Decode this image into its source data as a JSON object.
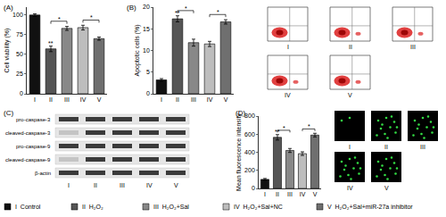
{
  "chart_data": [
    {
      "type": "bar",
      "title": "(A)",
      "y_label": "Cell viability (%)",
      "categories": [
        "I",
        "II",
        "III",
        "IV",
        "V"
      ],
      "values": [
        100,
        57,
        83,
        84,
        70
      ],
      "errors": [
        1.5,
        3.5,
        2.5,
        3,
        2
      ],
      "colors": [
        "#111111",
        "#555555",
        "#888888",
        "#bdbdbd",
        "#6f6f6f"
      ],
      "ylim": [
        0,
        110
      ],
      "yticks": [
        0,
        25,
        50,
        75,
        100
      ],
      "grid": false,
      "significance": [
        {
          "category": "II",
          "text": "**"
        }
      ],
      "brackets": [
        {
          "from": "II",
          "to": "III",
          "text": "*"
        },
        {
          "from": "IV",
          "to": "V",
          "text": "*"
        }
      ]
    },
    {
      "type": "bar",
      "title": "(B)",
      "y_label": "Apoptotic cells (%)",
      "categories": [
        "I",
        "II",
        "III",
        "IV",
        "V"
      ],
      "values": [
        3.2,
        17.3,
        11.8,
        11.5,
        16.6
      ],
      "errors": [
        0.3,
        0.7,
        0.8,
        0.6,
        0.5
      ],
      "colors": [
        "#111111",
        "#555555",
        "#888888",
        "#bdbdbd",
        "#6f6f6f"
      ],
      "ylim": [
        0,
        20
      ],
      "yticks": [
        0,
        5,
        10,
        15,
        20
      ],
      "grid": false,
      "significance": [
        {
          "category": "II",
          "text": "**"
        }
      ],
      "brackets": [
        {
          "from": "II",
          "to": "III",
          "text": "*"
        },
        {
          "from": "IV",
          "to": "V",
          "text": "*"
        }
      ]
    },
    {
      "type": "bar",
      "title": "(D)",
      "y_label": "Mean fluorescence intensity",
      "categories": [
        "I",
        "II",
        "III",
        "IV",
        "V"
      ],
      "values": [
        100,
        565,
        420,
        385,
        590
      ],
      "errors": [
        10,
        30,
        22,
        20,
        20
      ],
      "colors": [
        "#111111",
        "#555555",
        "#888888",
        "#bdbdbd",
        "#6f6f6f"
      ],
      "ylim": [
        0,
        800
      ],
      "yticks": [
        0,
        200,
        400,
        600,
        800
      ],
      "grid": false,
      "significance": [
        {
          "category": "II",
          "text": "**"
        }
      ],
      "brackets": [
        {
          "from": "II",
          "to": "III",
          "text": "*"
        },
        {
          "from": "IV",
          "to": "V",
          "text": "*"
        }
      ]
    }
  ],
  "flow_panels": {
    "labels": [
      "I",
      "II",
      "III",
      "IV",
      "V"
    ]
  },
  "blot": {
    "title": "(C)",
    "rows": [
      "pro-caspase-3",
      "cleaved-caspase-3",
      "pro-caspase-9",
      "cleaved-caspase-9",
      "β-actin"
    ],
    "lanes": [
      "I",
      "II",
      "III",
      "IV",
      "V"
    ]
  },
  "fluorescence_panels": {
    "labels": [
      "I",
      "II",
      "III",
      "IV",
      "V"
    ]
  },
  "legend": [
    {
      "label": "I",
      "text": "Control",
      "color": "#111111"
    },
    {
      "label": "II",
      "text": "H₂O₂",
      "color": "#555555"
    },
    {
      "label": "III",
      "text": "H₂O₂+Sal",
      "color": "#888888"
    },
    {
      "label": "IV",
      "text": "H₂O₂+Sal+NC",
      "color": "#bdbdbd"
    },
    {
      "label": "V",
      "text": "H₂O₂+Sal+miR-27a inhibitor",
      "color": "#6f6f6f"
    }
  ]
}
